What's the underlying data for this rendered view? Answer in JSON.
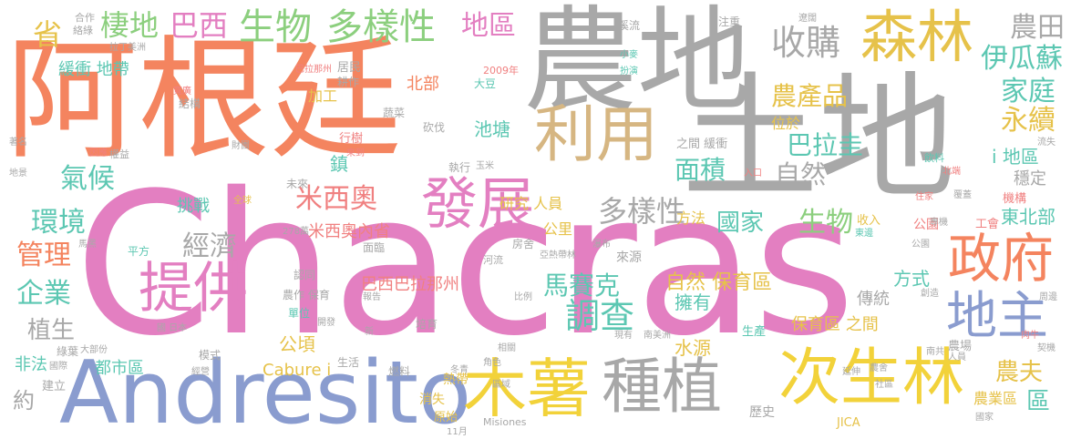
{
  "palette": {
    "orange": "#f4845f",
    "pink": "#e37fc1",
    "blue": "#8a9ccf",
    "gray": "#a8a8a8",
    "gold": "#e6c24a",
    "yellow": "#f2d23a",
    "green": "#8ccf7e",
    "teal": "#5cc7b2",
    "tan": "#d6b682",
    "coral": "#f08080",
    "lime": "#bde07a",
    "slate": "#8f96b8"
  },
  "words": [
    {
      "text": "Chacras",
      "color": "pink"
    },
    {
      "text": "阿根廷",
      "color": "orange"
    },
    {
      "text": "農地",
      "color": "gray"
    },
    {
      "text": "土地",
      "color": "gray"
    },
    {
      "text": "Andresito",
      "color": "blue"
    },
    {
      "text": "利用",
      "color": "tan"
    },
    {
      "text": "森林",
      "color": "gold"
    },
    {
      "text": "次生林",
      "color": "yellow"
    },
    {
      "text": "木薯",
      "color": "yellow"
    },
    {
      "text": "種植",
      "color": "gray"
    },
    {
      "text": "發展",
      "color": "pink"
    },
    {
      "text": "提供",
      "color": "pink"
    },
    {
      "text": "政府",
      "color": "orange"
    },
    {
      "text": "地主",
      "color": "blue"
    },
    {
      "text": "生物",
      "color": "green"
    },
    {
      "text": "多樣性",
      "color": "green"
    },
    {
      "text": "棲地",
      "color": "green"
    },
    {
      "text": "巴西",
      "color": "pink"
    },
    {
      "text": "收購",
      "color": "gray"
    },
    {
      "text": "農田",
      "color": "gray"
    },
    {
      "text": "伊瓜蘇",
      "color": "teal"
    },
    {
      "text": "家庭",
      "color": "teal"
    },
    {
      "text": "永續",
      "color": "gold"
    },
    {
      "text": "地區",
      "color": "pink"
    },
    {
      "text": "農產品",
      "color": "gold"
    },
    {
      "text": "巴拉圭",
      "color": "teal"
    },
    {
      "text": "自然",
      "color": "gray"
    },
    {
      "text": "面積",
      "color": "teal"
    },
    {
      "text": "氣候",
      "color": "teal"
    },
    {
      "text": "環境",
      "color": "teal"
    },
    {
      "text": "管理",
      "color": "orange"
    },
    {
      "text": "企業",
      "color": "teal"
    },
    {
      "text": "植生",
      "color": "gray"
    },
    {
      "text": "米西奧",
      "color": "coral"
    },
    {
      "text": "經濟",
      "color": "gray"
    },
    {
      "text": "多樣性",
      "color": "gray"
    },
    {
      "text": "生物",
      "color": "green"
    },
    {
      "text": "國家",
      "color": "teal"
    },
    {
      "text": "馬賽克",
      "color": "teal"
    },
    {
      "text": "調查",
      "color": "teal"
    },
    {
      "text": "農夫",
      "color": "gold"
    },
    {
      "text": "區",
      "color": "teal"
    },
    {
      "text": "約",
      "color": "gray"
    },
    {
      "text": "公頃",
      "color": "gold"
    },
    {
      "text": "省",
      "color": "gold"
    },
    {
      "text": "北部",
      "color": "orange"
    },
    {
      "text": "池塘",
      "color": "teal"
    },
    {
      "text": "i 地區",
      "color": "teal"
    },
    {
      "text": "東北部",
      "color": "teal"
    },
    {
      "text": "穩定",
      "color": "gray"
    },
    {
      "text": "緩衝 地帶",
      "color": "teal"
    },
    {
      "text": "挑戰",
      "color": "teal"
    },
    {
      "text": "米西奧內省",
      "color": "coral"
    },
    {
      "text": "方法",
      "color": "gold"
    },
    {
      "text": "研究 人員",
      "color": "gold"
    },
    {
      "text": "公里",
      "color": "gold"
    },
    {
      "text": "自然 保育區",
      "color": "gold"
    },
    {
      "text": "擁有",
      "color": "teal"
    },
    {
      "text": "水源",
      "color": "gold"
    },
    {
      "text": "保育區 之間",
      "color": "gold"
    },
    {
      "text": "方式",
      "color": "teal"
    },
    {
      "text": "傳統",
      "color": "gray"
    },
    {
      "text": "都市區",
      "color": "teal"
    },
    {
      "text": "Cabure i",
      "color": "gold"
    },
    {
      "text": "非法",
      "color": "teal"
    },
    {
      "text": "巴西巴拉那州",
      "color": "coral"
    },
    {
      "text": "位於",
      "color": "gold"
    },
    {
      "text": "加工",
      "color": "gold"
    },
    {
      "text": "鎮",
      "color": "teal"
    },
    {
      "text": "農業區",
      "color": "gold"
    },
    {
      "text": "歷史",
      "color": "gray"
    },
    {
      "text": "消失",
      "color": "gold"
    },
    {
      "text": "熱帶",
      "color": "gold"
    },
    {
      "text": "原始",
      "color": "gold"
    },
    {
      "text": "生產",
      "color": "teal"
    },
    {
      "text": "農場",
      "color": "gray"
    },
    {
      "text": "公園",
      "color": "coral"
    },
    {
      "text": "收入",
      "color": "gold"
    },
    {
      "text": "Misiones",
      "color": "gray"
    },
    {
      "text": "JICA",
      "color": "gold"
    },
    {
      "text": "11月",
      "color": "gray"
    },
    {
      "text": "2009年",
      "color": "coral"
    },
    {
      "text": "合作",
      "color": "gray"
    },
    {
      "text": "絡綠",
      "color": "gray"
    },
    {
      "text": "拉丁美洲",
      "color": "gray"
    },
    {
      "text": "居民",
      "color": "gray"
    },
    {
      "text": "耕作",
      "color": "gray"
    },
    {
      "text": "巴拉那州",
      "color": "coral"
    },
    {
      "text": "溪流",
      "color": "gray"
    },
    {
      "text": "小麥",
      "color": "teal"
    },
    {
      "text": "扮演",
      "color": "teal"
    },
    {
      "text": "注重",
      "color": "gray"
    },
    {
      "text": "遼闊",
      "color": "gray"
    },
    {
      "text": "蔬菜",
      "color": "gray"
    },
    {
      "text": "砍伐",
      "color": "gray"
    },
    {
      "text": "大豆",
      "color": "teal"
    },
    {
      "text": "結構",
      "color": "gray"
    },
    {
      "text": "寬廣",
      "color": "coral"
    },
    {
      "text": "權益",
      "color": "gray"
    },
    {
      "text": "因應",
      "color": "coral"
    },
    {
      "text": "著名",
      "color": "gray"
    },
    {
      "text": "地景",
      "color": "gray"
    },
    {
      "text": "全球",
      "color": "gold"
    },
    {
      "text": "財團",
      "color": "gray"
    },
    {
      "text": "行樹",
      "color": "coral"
    },
    {
      "text": "來到",
      "color": "coral"
    },
    {
      "text": "未來",
      "color": "gray"
    },
    {
      "text": "執行",
      "color": "gray"
    },
    {
      "text": "玉米",
      "color": "gray"
    },
    {
      "text": "之間 緩衝",
      "color": "gray"
    },
    {
      "text": "入口",
      "color": "coral"
    },
    {
      "text": "北端",
      "color": "coral"
    },
    {
      "text": "飲料",
      "color": "teal"
    },
    {
      "text": "流失",
      "color": "gray"
    },
    {
      "text": "住家",
      "color": "coral"
    },
    {
      "text": "機構",
      "color": "coral"
    },
    {
      "text": "工會",
      "color": "coral"
    },
    {
      "text": "專機",
      "color": "gray"
    },
    {
      "text": "覆蓋",
      "color": "gray"
    },
    {
      "text": "東邊",
      "color": "teal"
    },
    {
      "text": "公園",
      "color": "gray"
    },
    {
      "text": "平方",
      "color": "teal"
    },
    {
      "text": "馬黑",
      "color": "gray"
    },
    {
      "text": "278萬",
      "color": "gray"
    },
    {
      "text": "亞熱帶林",
      "color": "gray"
    },
    {
      "text": "瀑布",
      "color": "gray"
    },
    {
      "text": "來源",
      "color": "gray"
    },
    {
      "text": "河流",
      "color": "gray"
    },
    {
      "text": "房舍",
      "color": "gray"
    },
    {
      "text": "面臨",
      "color": "gray"
    },
    {
      "text": "認同",
      "color": "gray"
    },
    {
      "text": "農作 保育",
      "color": "gray"
    },
    {
      "text": "報告",
      "color": "gray"
    },
    {
      "text": "比例",
      "color": "gray"
    },
    {
      "text": "單位",
      "color": "teal"
    },
    {
      "text": "開發",
      "color": "gray"
    },
    {
      "text": "國 日本",
      "color": "gray"
    },
    {
      "text": "新",
      "color": "gray"
    },
    {
      "text": "培育",
      "color": "gray"
    },
    {
      "text": "現有",
      "color": "gray"
    },
    {
      "text": "南美洲",
      "color": "gray"
    },
    {
      "text": "相關",
      "color": "gray"
    },
    {
      "text": "角色",
      "color": "gray"
    },
    {
      "text": "模式",
      "color": "gray"
    },
    {
      "text": "綠葉",
      "color": "gray"
    },
    {
      "text": "大部份",
      "color": "gray"
    },
    {
      "text": "國際",
      "color": "gray"
    },
    {
      "text": "生活",
      "color": "gray"
    },
    {
      "text": "燃料",
      "color": "gray"
    },
    {
      "text": "冬青",
      "color": "gray"
    },
    {
      "text": "區域",
      "color": "gray"
    },
    {
      "text": "經營",
      "color": "gray"
    },
    {
      "text": "建立",
      "color": "gray"
    },
    {
      "text": "延伸",
      "color": "gray"
    },
    {
      "text": "社區",
      "color": "gray"
    },
    {
      "text": "人員",
      "color": "gray"
    },
    {
      "text": "南共",
      "color": "gray"
    },
    {
      "text": "契機",
      "color": "gray"
    },
    {
      "text": "肉牛",
      "color": "coral"
    },
    {
      "text": "周邊",
      "color": "gray"
    },
    {
      "text": "創造",
      "color": "gray"
    },
    {
      "text": "農舍",
      "color": "gray"
    },
    {
      "text": "國家",
      "color": "gray"
    },
    {
      "text": "保育區 之間",
      "color": "gold"
    }
  ]
}
